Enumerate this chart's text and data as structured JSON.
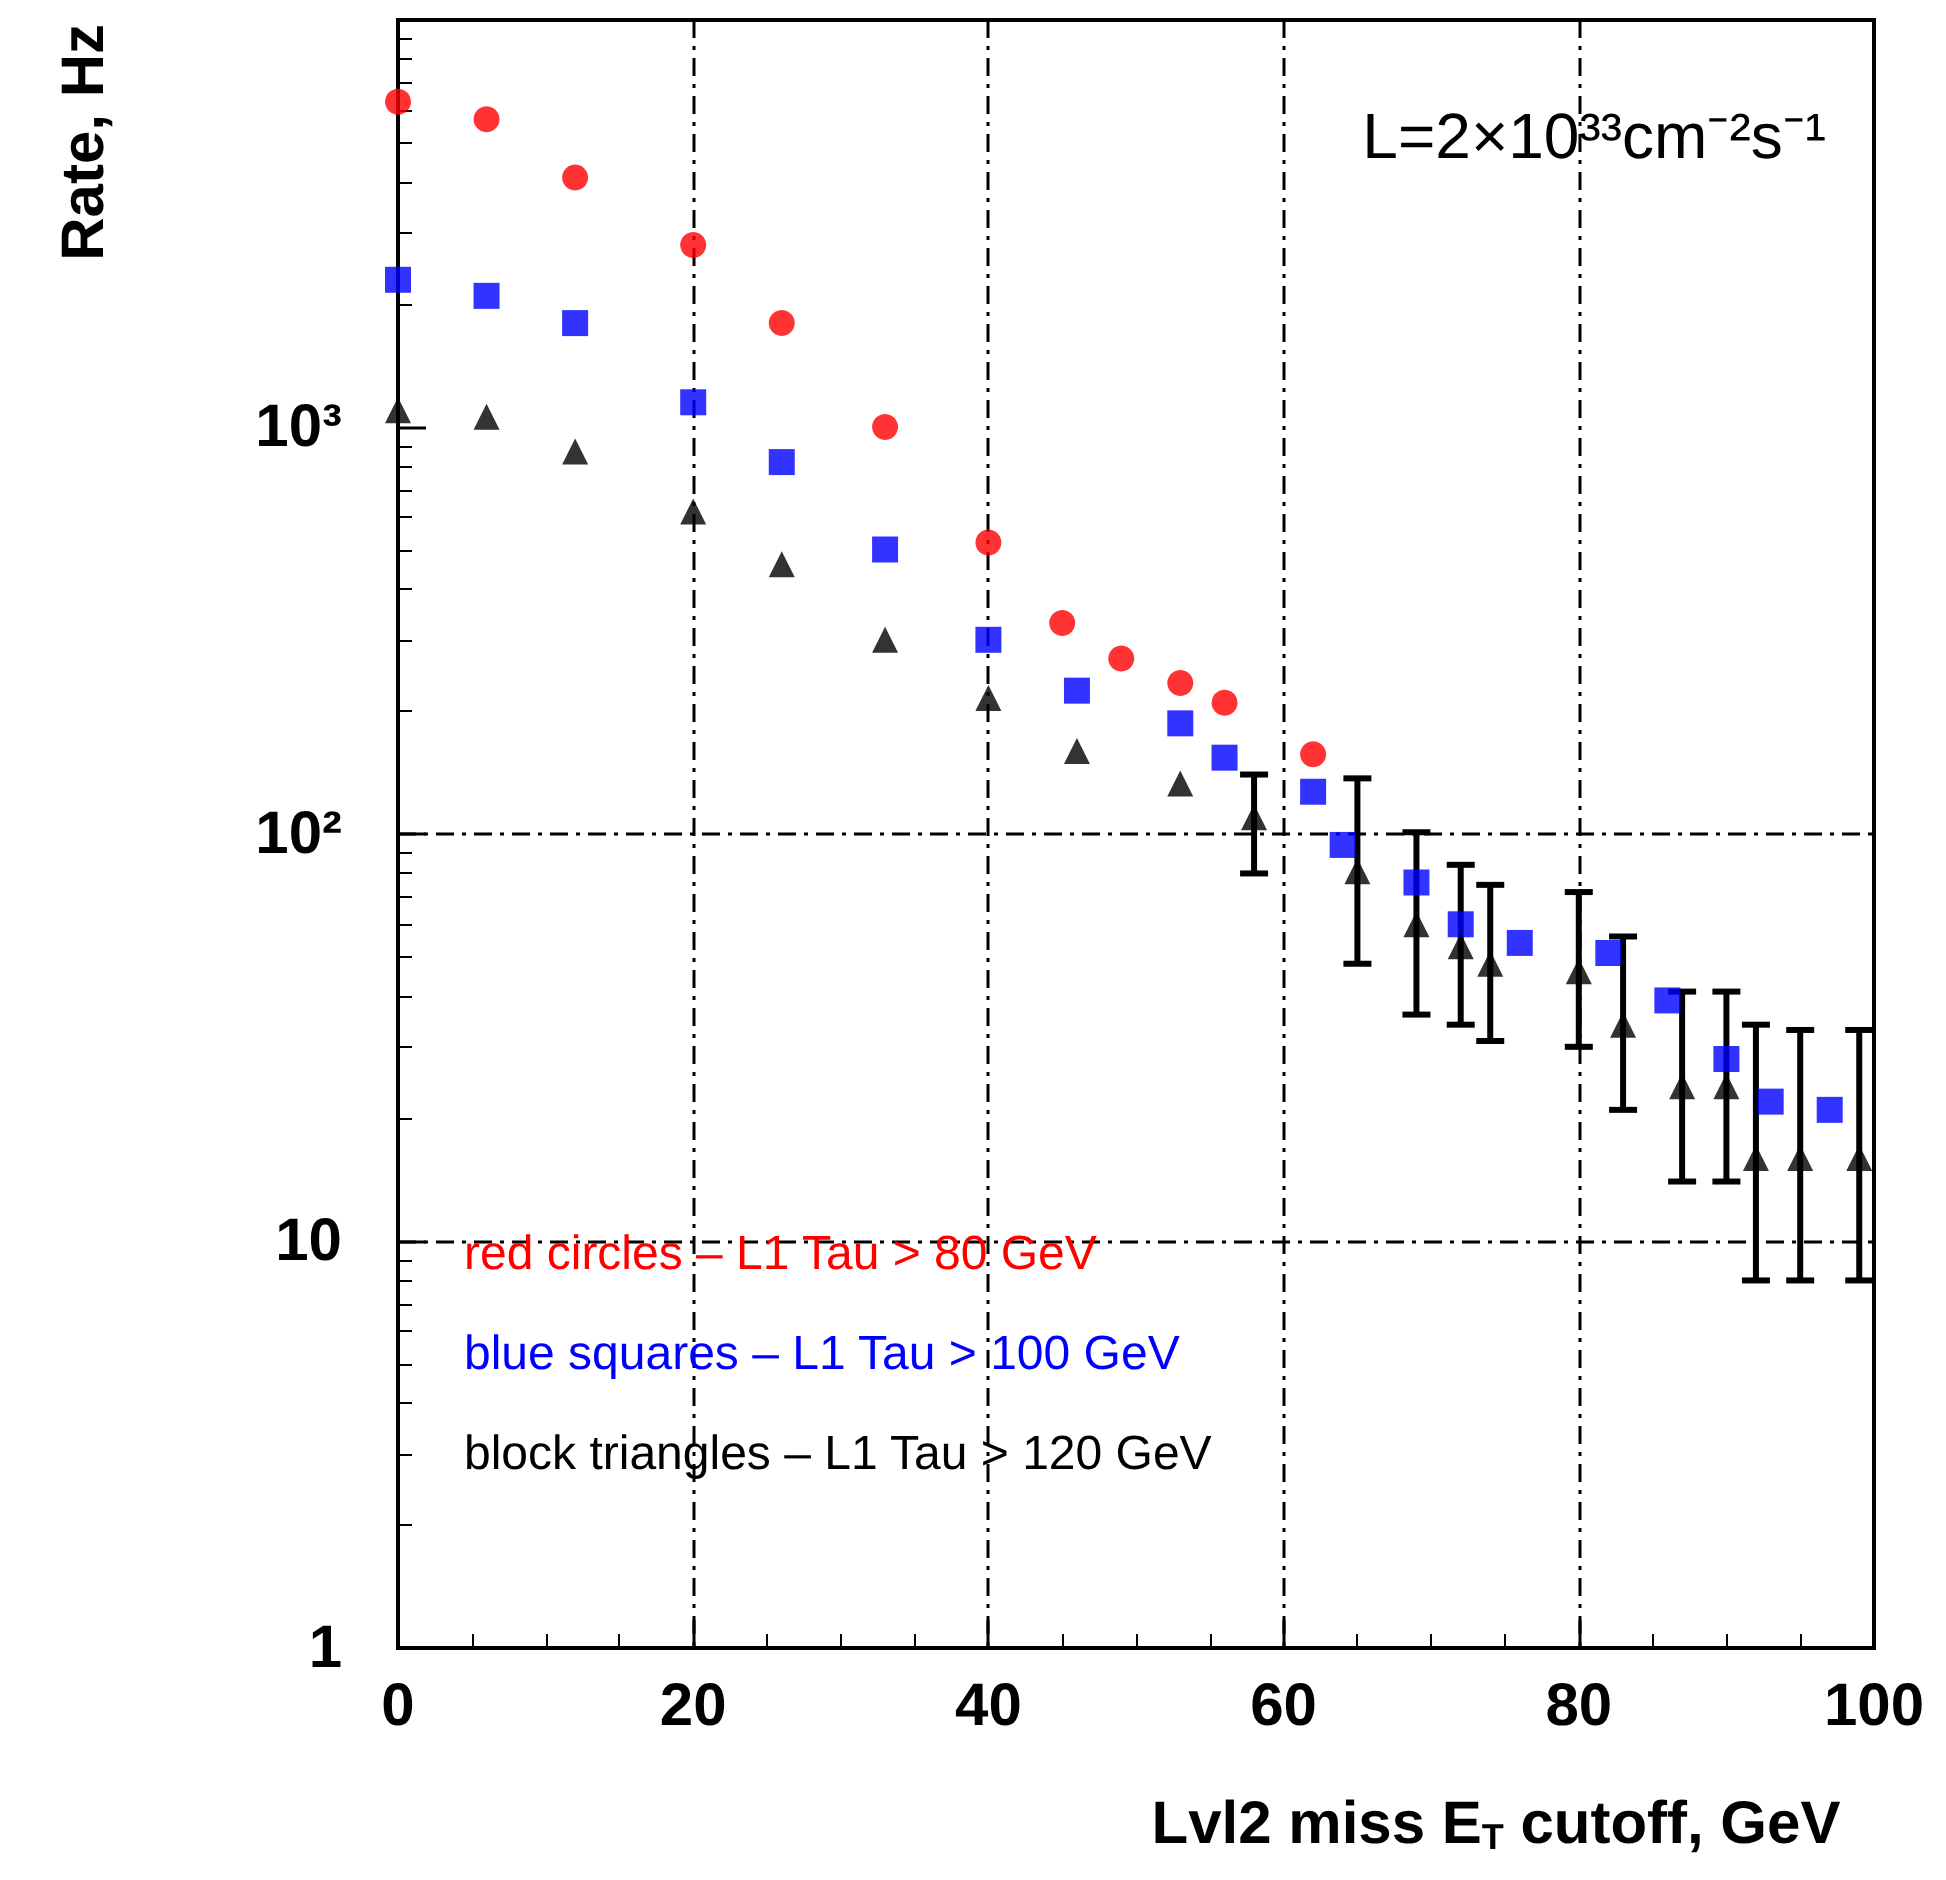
{
  "chart_data": {
    "type": "scatter",
    "xlabel": "Lvl2 miss E$_{T}$ cutoff, GeV",
    "ylabel": "Rate, Hz",
    "annotations": [
      "L=2×10³³cm⁻²s⁻¹"
    ],
    "xlim": [
      0,
      100
    ],
    "xticks": [
      0,
      20,
      40,
      60,
      80,
      100
    ],
    "ylim": [
      1,
      10000
    ],
    "yticks": [
      1,
      10,
      {
        "value": 100,
        "label": "10²"
      },
      {
        "value": 1000,
        "label": "10³"
      }
    ],
    "log": true,
    "grid": true,
    "legend": "bottom left",
    "series": [
      {
        "name": "red circles – L1 Tau > 80 GeV",
        "color": "#ff0000",
        "marker": "circle",
        "x": [
          0,
          6,
          12,
          20,
          26,
          33,
          40,
          45,
          49,
          53,
          56,
          62
        ],
        "values": [
          6300,
          5700,
          4100,
          2800,
          1800,
          1000,
          520,
          330,
          270,
          235,
          210,
          157
        ]
      },
      {
        "name": "blue squares – L1 Tau > 100 GeV",
        "color": "#0000ff",
        "marker": "square",
        "x": [
          0,
          6,
          12,
          20,
          26,
          33,
          40,
          46,
          53,
          56,
          62,
          64,
          69,
          72,
          76,
          82,
          86,
          90,
          93,
          97
        ],
        "values": [
          2300,
          2100,
          1800,
          1150,
          820,
          500,
          300,
          225,
          187,
          154,
          127,
          94,
          76,
          60,
          54,
          51,
          39,
          28,
          22,
          21
        ]
      },
      {
        "name": "block triangles – L1 Tau > 120 GeV",
        "color": "#000000",
        "marker": "triangle",
        "x": [
          0,
          6,
          12,
          20,
          26,
          33,
          40,
          46,
          53,
          58,
          65,
          69,
          72,
          74,
          80,
          83,
          87,
          90,
          92,
          95,
          99
        ],
        "values": [
          1100,
          1060,
          870,
          620,
          460,
          300,
          216,
          160,
          133,
          110,
          81,
          60,
          53,
          48,
          46,
          34,
          24,
          24,
          16,
          16,
          16
        ],
        "errors": [
          null,
          null,
          null,
          null,
          null,
          null,
          null,
          null,
          null,
          [
            80,
            140
          ],
          [
            48,
            137
          ],
          [
            36,
            101
          ],
          [
            34,
            84
          ],
          [
            31,
            75
          ],
          [
            30,
            72
          ],
          [
            21,
            56
          ],
          [
            14,
            41
          ],
          [
            14,
            41
          ],
          [
            8,
            34
          ],
          [
            8,
            33
          ],
          [
            8,
            33
          ]
        ]
      }
    ]
  }
}
